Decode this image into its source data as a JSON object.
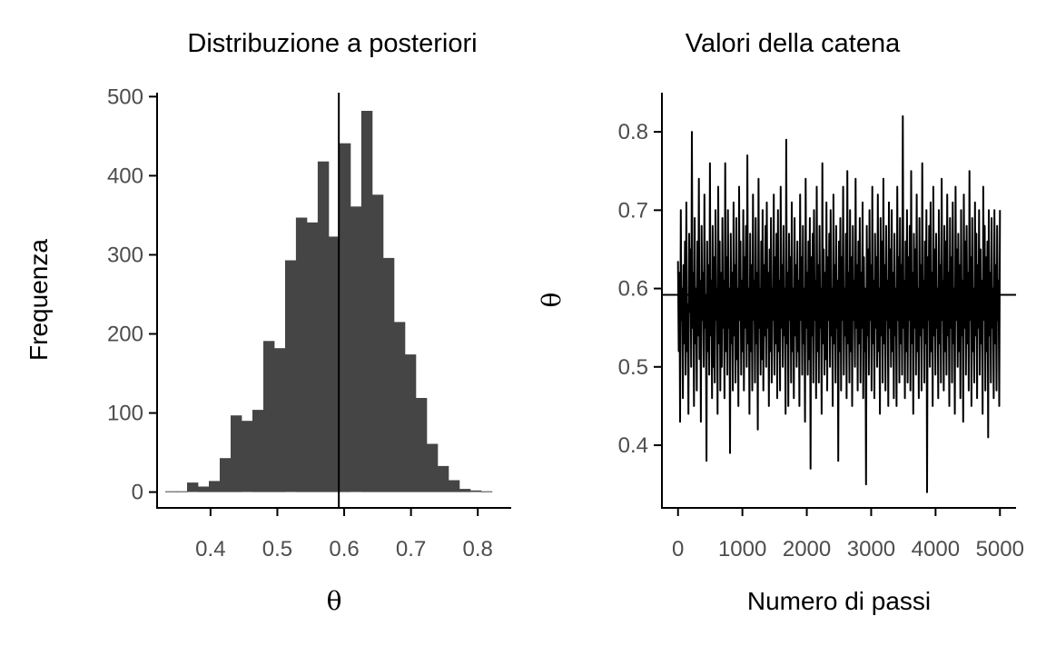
{
  "colors": {
    "bars": "#454545",
    "line": "#000000",
    "tick_text": "#4d4d4d"
  },
  "chart_data": [
    {
      "type": "bar",
      "title": "Distribuzione a posteriori",
      "xlabel": "θ",
      "ylabel": "Frequenza",
      "xlim": [
        0.32,
        0.85
      ],
      "ylim": [
        -20,
        505
      ],
      "x_ticks": [
        0.4,
        0.5,
        0.6,
        0.7,
        0.8
      ],
      "x_tick_labels": [
        "0.4",
        "0.5",
        "0.6",
        "0.7",
        "0.8"
      ],
      "y_ticks": [
        0,
        100,
        200,
        300,
        400,
        500
      ],
      "y_tick_labels": [
        "0",
        "100",
        "200",
        "300",
        "400",
        "500"
      ],
      "bin_width": 0.0163,
      "bin_centers": [
        0.3404,
        0.3567,
        0.373,
        0.3893,
        0.4056,
        0.4219,
        0.4382,
        0.4545,
        0.4708,
        0.4871,
        0.5034,
        0.5197,
        0.536,
        0.5523,
        0.5686,
        0.5849,
        0.6012,
        0.6175,
        0.6338,
        0.6501,
        0.6664,
        0.6827,
        0.699,
        0.7153,
        0.7316,
        0.7479,
        0.7642,
        0.7805,
        0.7968,
        0.8131
      ],
      "values": [
        1,
        1,
        12,
        7,
        14,
        43,
        97,
        90,
        104,
        191,
        182,
        293,
        347,
        341,
        418,
        323,
        441,
        361,
        482,
        376,
        296,
        215,
        174,
        119,
        61,
        33,
        15,
        4,
        2,
        1
      ],
      "vline": 0.592
    },
    {
      "type": "line",
      "title": "Valori della catena",
      "xlabel": "Numero di passi",
      "ylabel": "θ",
      "xlim": [
        -250,
        5250
      ],
      "ylim": [
        0.32,
        0.85
      ],
      "x_ticks": [
        0,
        1000,
        2000,
        3000,
        4000,
        5000
      ],
      "x_tick_labels": [
        "0",
        "1000",
        "2000",
        "3000",
        "4000",
        "5000"
      ],
      "y_ticks": [
        0.4,
        0.5,
        0.6,
        0.7,
        0.8
      ],
      "y_tick_labels": [
        "0.4",
        "0.5",
        "0.6",
        "0.7",
        "0.8"
      ],
      "n_steps": 5000,
      "trace_sampled_every": 10,
      "trace": [
        0.635,
        0.52,
        0.62,
        0.43,
        0.7,
        0.56,
        0.6,
        0.46,
        0.63,
        0.53,
        0.66,
        0.49,
        0.71,
        0.52,
        0.58,
        0.44,
        0.67,
        0.57,
        0.65,
        0.5,
        0.8,
        0.55,
        0.62,
        0.45,
        0.69,
        0.53,
        0.6,
        0.47,
        0.66,
        0.54,
        0.74,
        0.51,
        0.61,
        0.43,
        0.68,
        0.56,
        0.62,
        0.5,
        0.72,
        0.55,
        0.59,
        0.38,
        0.66,
        0.52,
        0.63,
        0.49,
        0.76,
        0.54,
        0.61,
        0.46,
        0.68,
        0.5,
        0.64,
        0.48,
        0.7,
        0.56,
        0.6,
        0.44,
        0.73,
        0.53,
        0.66,
        0.47,
        0.62,
        0.5,
        0.69,
        0.55,
        0.61,
        0.46,
        0.76,
        0.52,
        0.64,
        0.49,
        0.7,
        0.55,
        0.6,
        0.39,
        0.67,
        0.53,
        0.62,
        0.47,
        0.71,
        0.54,
        0.63,
        0.48,
        0.69,
        0.51,
        0.6,
        0.45,
        0.73,
        0.56,
        0.66,
        0.49,
        0.61,
        0.52,
        0.7,
        0.47,
        0.64,
        0.55,
        0.68,
        0.5,
        0.77,
        0.53,
        0.6,
        0.44,
        0.67,
        0.52,
        0.63,
        0.47,
        0.72,
        0.56,
        0.61,
        0.48,
        0.69,
        0.53,
        0.62,
        0.42,
        0.74,
        0.55,
        0.6,
        0.49,
        0.66,
        0.51,
        0.7,
        0.47,
        0.63,
        0.54,
        0.68,
        0.5,
        0.71,
        0.55,
        0.62,
        0.45,
        0.65,
        0.52,
        0.69,
        0.48,
        0.6,
        0.56,
        0.72,
        0.49,
        0.64,
        0.53,
        0.67,
        0.46,
        0.7,
        0.52,
        0.61,
        0.47,
        0.73,
        0.55,
        0.63,
        0.5,
        0.68,
        0.54,
        0.6,
        0.44,
        0.79,
        0.53,
        0.62,
        0.45,
        0.67,
        0.56,
        0.64,
        0.48,
        0.71,
        0.52,
        0.6,
        0.46,
        0.69,
        0.54,
        0.63,
        0.5,
        0.66,
        0.52,
        0.61,
        0.45,
        0.72,
        0.56,
        0.64,
        0.49,
        0.68,
        0.53,
        0.6,
        0.43,
        0.74,
        0.55,
        0.62,
        0.49,
        0.66,
        0.51,
        0.69,
        0.37,
        0.64,
        0.54,
        0.67,
        0.48,
        0.7,
        0.56,
        0.61,
        0.46,
        0.73,
        0.52,
        0.63,
        0.48,
        0.68,
        0.55,
        0.6,
        0.44,
        0.76,
        0.53,
        0.65,
        0.49,
        0.62,
        0.51,
        0.71,
        0.47,
        0.64,
        0.56,
        0.67,
        0.5,
        0.7,
        0.54,
        0.6,
        0.45,
        0.72,
        0.53,
        0.63,
        0.48,
        0.68,
        0.55,
        0.61,
        0.38,
        0.66,
        0.52,
        0.69,
        0.47,
        0.64,
        0.56,
        0.73,
        0.49,
        0.6,
        0.54,
        0.67,
        0.46,
        0.75,
        0.53,
        0.62,
        0.48,
        0.7,
        0.52,
        0.64,
        0.45,
        0.68,
        0.56,
        0.61,
        0.5,
        0.74,
        0.55,
        0.63,
        0.47,
        0.66,
        0.53,
        0.69,
        0.48,
        0.62,
        0.55,
        0.71,
        0.46,
        0.64,
        0.52,
        0.6,
        0.35,
        0.68,
        0.54,
        0.65,
        0.49,
        0.7,
        0.56,
        0.63,
        0.47,
        0.73,
        0.53,
        0.61,
        0.46,
        0.67,
        0.55,
        0.64,
        0.5,
        0.72,
        0.52,
        0.6,
        0.44,
        0.69,
        0.54,
        0.66,
        0.48,
        0.74,
        0.53,
        0.63,
        0.47,
        0.68,
        0.56,
        0.61,
        0.45,
        0.71,
        0.55,
        0.65,
        0.5,
        0.7,
        0.52,
        0.62,
        0.46,
        0.67,
        0.54,
        0.6,
        0.45,
        0.73,
        0.56,
        0.64,
        0.48,
        0.69,
        0.53,
        0.63,
        0.49,
        0.82,
        0.55,
        0.61,
        0.46,
        0.66,
        0.52,
        0.7,
        0.48,
        0.64,
        0.56,
        0.68,
        0.47,
        0.75,
        0.53,
        0.62,
        0.44,
        0.67,
        0.55,
        0.65,
        0.49,
        0.72,
        0.52,
        0.6,
        0.46,
        0.69,
        0.54,
        0.63,
        0.47,
        0.76,
        0.55,
        0.61,
        0.48,
        0.66,
        0.53,
        0.7,
        0.34,
        0.64,
        0.56,
        0.68,
        0.5,
        0.71,
        0.52,
        0.62,
        0.45,
        0.73,
        0.54,
        0.65,
        0.49,
        0.67,
        0.55,
        0.6,
        0.46,
        0.7,
        0.53,
        0.63,
        0.48,
        0.74,
        0.56,
        0.61,
        0.47,
        0.68,
        0.52,
        0.66,
        0.49,
        0.72,
        0.54,
        0.62,
        0.45,
        0.69,
        0.55,
        0.64,
        0.48,
        0.71,
        0.53,
        0.6,
        0.44,
        0.73,
        0.56,
        0.65,
        0.5,
        0.67,
        0.52,
        0.63,
        0.46,
        0.7,
        0.54,
        0.61,
        0.43,
        0.72,
        0.55,
        0.66,
        0.49,
        0.68,
        0.53,
        0.62,
        0.47,
        0.75,
        0.56,
        0.64,
        0.45,
        0.69,
        0.52,
        0.6,
        0.48,
        0.71,
        0.54,
        0.67,
        0.46,
        0.63,
        0.55,
        0.7,
        0.49,
        0.65,
        0.53,
        0.61,
        0.44,
        0.73,
        0.56,
        0.68,
        0.47,
        0.64,
        0.52,
        0.66,
        0.41,
        0.7,
        0.54,
        0.62,
        0.48,
        0.69,
        0.55,
        0.6,
        0.46,
        0.7,
        0.53,
        0.63,
        0.47,
        0.68,
        0.56,
        0.61,
        0.45,
        0.7
      ]
    }
  ]
}
